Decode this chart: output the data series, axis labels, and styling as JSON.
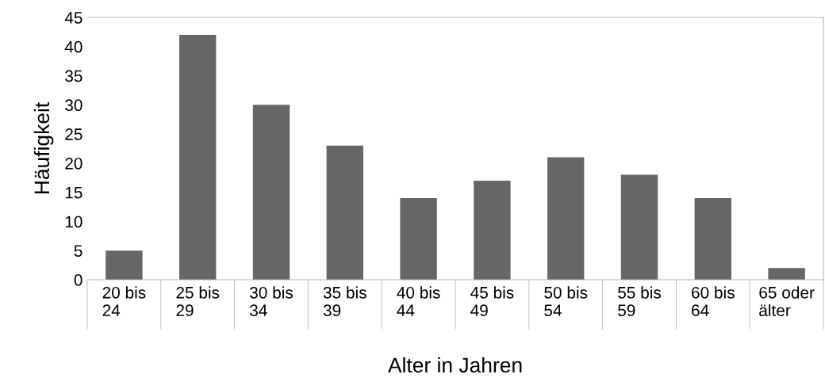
{
  "chart_data": {
    "type": "bar",
    "xlabel": "Alter in Jahren",
    "ylabel": "Häufigkeit",
    "categories": [
      "20 bis\n24",
      "25 bis\n29",
      "30 bis\n34",
      "35 bis\n39",
      "40 bis\n44",
      "45 bis\n49",
      "50 bis\n54",
      "55 bis\n59",
      "60 bis\n64",
      "65 oder\nälter"
    ],
    "values": [
      5,
      42,
      30,
      23,
      14,
      17,
      21,
      18,
      14,
      2
    ],
    "color": "#666666",
    "ylim": [
      0,
      45
    ],
    "yticks": [
      0,
      5,
      10,
      15,
      20,
      25,
      30,
      35,
      40,
      45
    ],
    "grid": false,
    "legend": false
  }
}
